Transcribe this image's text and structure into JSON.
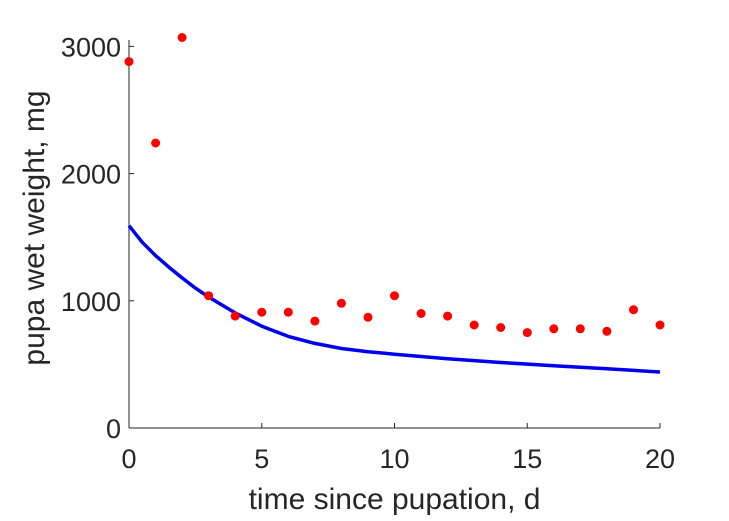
{
  "chart_data": {
    "type": "scatter",
    "xlabel": "time since pupation, d",
    "ylabel": "pupa wet weight, mg",
    "xlim": [
      0,
      20
    ],
    "ylim": [
      0,
      3050
    ],
    "xticks": [
      {
        "value": 0,
        "label": "0"
      },
      {
        "value": 5,
        "label": "5"
      },
      {
        "value": 10,
        "label": "10"
      },
      {
        "value": 15,
        "label": "15"
      },
      {
        "value": 20,
        "label": "20"
      }
    ],
    "yticks": [
      {
        "value": 0,
        "label": "0"
      },
      {
        "value": 1000,
        "label": "1000"
      },
      {
        "value": 2000,
        "label": "2000"
      },
      {
        "value": 3000,
        "label": "3000"
      }
    ],
    "grid": false,
    "series": [
      {
        "kind": "scatter",
        "color": "#ff0000",
        "x": [
          0,
          1,
          2,
          3,
          4,
          5,
          6,
          7,
          8,
          9,
          10,
          11,
          12,
          13,
          14,
          15,
          16,
          17,
          18,
          19,
          20
        ],
        "y": [
          2880,
          2240,
          3070,
          1040,
          880,
          910,
          910,
          840,
          980,
          870,
          1040,
          900,
          880,
          810,
          790,
          750,
          780,
          780,
          760,
          930,
          810
        ]
      },
      {
        "kind": "line",
        "color": "#0000ee",
        "x": [
          0,
          0.5,
          1,
          1.5,
          2,
          2.5,
          3,
          4,
          5,
          6,
          7,
          8,
          9,
          10,
          12,
          14,
          16,
          18,
          20
        ],
        "y": [
          1590,
          1460,
          1355,
          1265,
          1180,
          1100,
          1030,
          905,
          800,
          720,
          665,
          625,
          600,
          580,
          545,
          515,
          490,
          465,
          440
        ]
      }
    ]
  }
}
